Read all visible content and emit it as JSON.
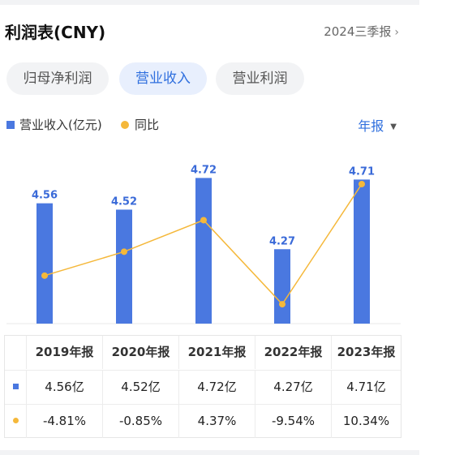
{
  "header": {
    "title": "利润表(CNY)",
    "period": "2024三季报",
    "chevron": "›"
  },
  "tabs": [
    {
      "label": "归母净利润",
      "active": false
    },
    {
      "label": "营业收入",
      "active": true
    },
    {
      "label": "营业利润",
      "active": false
    }
  ],
  "legend": {
    "bar_label": "营业收入(亿元)",
    "line_label": "同比"
  },
  "frequency": {
    "label": "年报",
    "arrow": "▼"
  },
  "colors": {
    "bar": "#4a78e0",
    "line": "#f5b83a",
    "label": "#3a6ad8",
    "negative": "#2e9d64",
    "positive": "#e04a4a"
  },
  "chart_data": {
    "type": "bar",
    "categories": [
      "2019年报",
      "2020年报",
      "2021年报",
      "2022年报",
      "2023年报"
    ],
    "series": [
      {
        "name": "营业收入(亿元)",
        "type": "bar",
        "values": [
          4.56,
          4.52,
          4.72,
          4.27,
          4.71
        ]
      },
      {
        "name": "同比",
        "type": "line",
        "values": [
          -4.81,
          -0.85,
          4.37,
          -9.54,
          10.34
        ]
      }
    ],
    "bar_labels": [
      "4.56",
      "4.52",
      "4.72",
      "4.27",
      "4.71"
    ],
    "legend_position": "top-left",
    "grid": false
  },
  "table": {
    "headers": [
      "2019年报",
      "2020年报",
      "2021年报",
      "2022年报",
      "2023年报"
    ],
    "revenue": [
      "4.56亿",
      "4.52亿",
      "4.72亿",
      "4.27亿",
      "4.71亿"
    ],
    "yoy": [
      "-4.81%",
      "-0.85%",
      "4.37%",
      "-9.54%",
      "10.34%"
    ]
  }
}
